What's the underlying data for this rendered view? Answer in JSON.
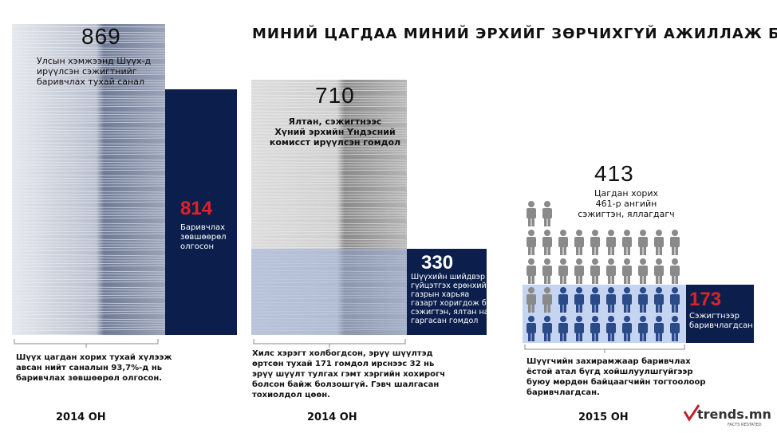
{
  "title": "МИНИЙ ЦАГДАА МИНИЙ ЭРХИЙГ ЗӨРЧИХГҮЙ АЖИЛЛАЖ БАЙНА УУ?",
  "panels": [
    {
      "total": "869",
      "total_label": [
        "Улсын хэмжээнд Шүүх-д",
        "ирүүлсэн сэжигтнийг",
        "баривчлах тухай санал"
      ],
      "highlight": "814",
      "highlight_label": [
        "Баривчлах",
        "зөвшөөрөл",
        "олгосон"
      ],
      "caption": [
        "Шүүх цагдан хорих тухай хүлээж",
        "авсан нийт саналын 93,7%-д нь",
        "баривчлах зөвшөөрөл олгосон."
      ],
      "year": "2014 ОН"
    },
    {
      "total": "710",
      "total_label": [
        "Ялтан, сэжигтнээс",
        "Хүний эрхийн Үндэсний",
        "комисст ирүүлсэн гомдол"
      ],
      "highlight": "330",
      "highlight_label": [
        "Шүүхийн шийдвэр",
        "гүйцэтгэх ерөнхий",
        "газрын харьяа",
        "газарт хоригдож буй",
        "сэжигтэн, ялтан нарын",
        "гаргасан гомдол"
      ],
      "caption": [
        "Хилс хэрэгт холбогдсон, эрүү  шүүлтэд",
        "өртсөн тухай 171 гомдол ирснээс 32 нь",
        "эрүү шүүлт тулгах гэмт хэргийн хохирогч",
        "болсон байж болзошгүй. Гэвч шалгасан",
        "тохиолдол цөөн."
      ],
      "year": "2014 ОН"
    },
    {
      "total": "413",
      "total_label": [
        "Цагдан хорих",
        "461-р ангийн",
        "сэжигтэн, яллагдагч"
      ],
      "highlight": "173",
      "highlight_label": [
        "Сэжигтнээр",
        "баривчлагдсан"
      ],
      "caption": [
        "Шүүгчийн захирамжаар баривчлах",
        "ёстой атал бүгд хойшлуулшгүйгээр",
        "буюу мөрдөн байцаагчийн тогтоолоор",
        "баривчлагдсан."
      ],
      "year": "2015 ОН"
    }
  ],
  "logo": {
    "name": "trends.mn",
    "tagline": "FACTS RESTATED"
  }
}
